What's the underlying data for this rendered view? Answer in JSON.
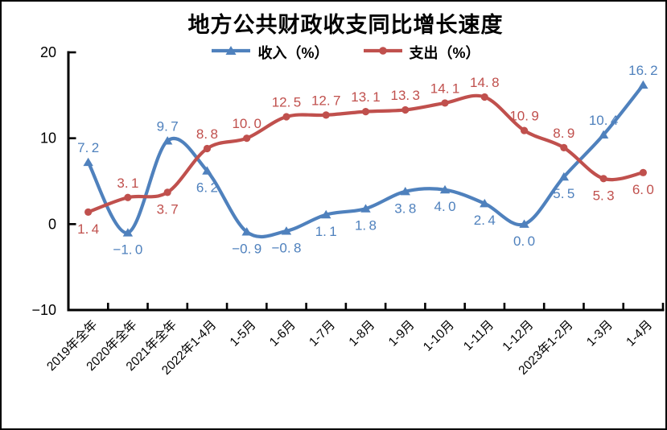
{
  "title": "地方公共财政收支同比增长速度",
  "legend": [
    {
      "label": "收入（%）",
      "color": "#4F81BD",
      "marker": "triangle"
    },
    {
      "label": "支出（%）",
      "color": "#C0504D",
      "marker": "circle"
    }
  ],
  "chart_data": {
    "type": "line",
    "smoothed": true,
    "title": "地方公共财政收支同比增长速度",
    "categories": [
      "2019年全年",
      "2020年全年",
      "2021年全年",
      "2022年1-4月",
      "1-5月",
      "1-6月",
      "1-7月",
      "1-8月",
      "1-9月",
      "1-10月",
      "1-11月",
      "1-12月",
      "2023年1-2月",
      "1-3月",
      "1-4月"
    ],
    "series": [
      {
        "name": "收入（%）",
        "color": "#4F81BD",
        "marker": "triangle",
        "values": [
          7.2,
          -1.0,
          9.7,
          6.2,
          -0.9,
          -0.8,
          1.1,
          1.8,
          3.8,
          4.0,
          2.4,
          0.0,
          5.5,
          10.4,
          16.2
        ],
        "label_side": [
          "above",
          "below",
          "above",
          "below",
          "below",
          "below",
          "below",
          "below",
          "below",
          "below",
          "below",
          "below",
          "below",
          "above",
          "above"
        ]
      },
      {
        "name": "支出（%）",
        "color": "#C0504D",
        "marker": "circle",
        "values": [
          1.4,
          3.1,
          3.7,
          8.8,
          10.0,
          12.5,
          12.7,
          13.1,
          13.3,
          14.1,
          14.8,
          10.9,
          8.9,
          5.3,
          6.0
        ],
        "label_side": [
          "below",
          "above",
          "below",
          "above",
          "above",
          "above",
          "above",
          "above",
          "above",
          "above",
          "above",
          "above",
          "above",
          "below",
          "below"
        ]
      }
    ],
    "ylim": [
      -10,
      20
    ],
    "yticks": [
      20,
      10,
      0,
      -10
    ],
    "grid": false,
    "legend_position": "top",
    "axis_color": "#000000",
    "xlabel": "",
    "ylabel": ""
  }
}
